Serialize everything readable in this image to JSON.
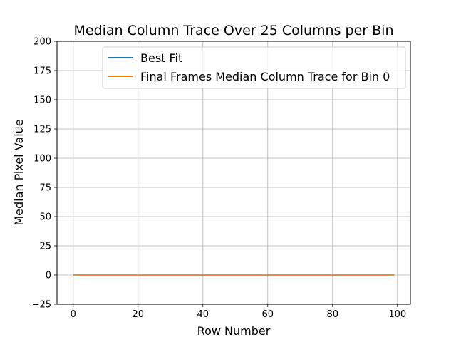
{
  "chart_data": {
    "type": "line",
    "title": "Median Column Trace Over 25 Columns per Bin",
    "xlabel": "Row Number",
    "ylabel": "Median Pixel Value",
    "xlim": [
      -5,
      104
    ],
    "ylim": [
      -25,
      200
    ],
    "xticks": [
      0,
      20,
      40,
      60,
      80,
      100
    ],
    "yticks": [
      -25,
      0,
      25,
      50,
      75,
      100,
      125,
      150,
      175,
      200
    ],
    "grid": true,
    "legend_position": "top-right",
    "series": [
      {
        "name": "Best Fit",
        "color": "#1f77b4",
        "x": [
          0,
          99
        ],
        "y": [
          0,
          0
        ]
      },
      {
        "name": "Final Frames Median Column Trace for Bin 0",
        "color": "#ff7f0e",
        "x": [
          0,
          99
        ],
        "y": [
          0,
          0
        ]
      }
    ]
  }
}
